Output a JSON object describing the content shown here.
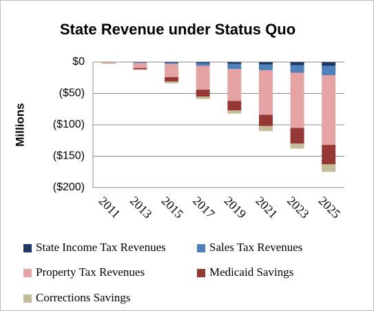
{
  "chart_data": {
    "type": "stacked-bar",
    "title": "State Revenue under Status Quo",
    "ylabel": "Millions",
    "categories": [
      "2011",
      "2013",
      "2015",
      "2017",
      "2019",
      "2021",
      "2023",
      "2025"
    ],
    "series": [
      {
        "name": "State Income Tax Revenues",
        "color": "#1f3864",
        "values": [
          0,
          -0.5,
          -1,
          -2,
          -3,
          -4,
          -5,
          -6
        ]
      },
      {
        "name": "Sales Tax Revenues",
        "color": "#4f81bd",
        "values": [
          0,
          -1,
          -2,
          -4,
          -8,
          -9,
          -12,
          -15
        ]
      },
      {
        "name": "Property Tax Revenues",
        "color": "#e6a3a3",
        "values": [
          -1,
          -8,
          -21,
          -38,
          -51,
          -71,
          -88,
          -111
        ]
      },
      {
        "name": "Medicaid Savings",
        "color": "#953735",
        "values": [
          -0.5,
          -2,
          -7,
          -11,
          -15,
          -18,
          -25,
          -31
        ]
      },
      {
        "name": "Corrections Savings",
        "color": "#c4bd97",
        "values": [
          -1,
          -1,
          -3,
          -4,
          -5,
          -8,
          -8,
          -12
        ]
      }
    ],
    "ylim": [
      -200,
      0
    ],
    "yticks": [
      {
        "value": 0,
        "label": "$0"
      },
      {
        "value": -50,
        "label": "($50)"
      },
      {
        "value": -100,
        "label": "($100)"
      },
      {
        "value": -150,
        "label": "($150)"
      },
      {
        "value": -200,
        "label": "($200)"
      }
    ],
    "grid": true
  }
}
